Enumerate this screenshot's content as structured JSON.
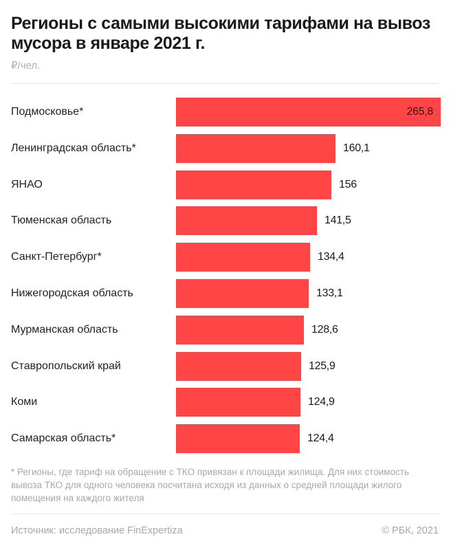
{
  "header": {
    "title": "Регионы с самыми высокими тарифами на вывоз мусора в январе 2021 г.",
    "unit": "₽/чел."
  },
  "footer": {
    "note": "* Регионы, где тариф на обращение с ТКО привязан к площади жилища. Для них стоимость вывоза ТКО для одного человека посчитана исходя из данных о средней площади жилого помещения на каждого жителя",
    "source": "Источник:  исследование FinExpertiza",
    "copyright": "© РБК, 2021"
  },
  "colors": {
    "bar": "#ff4545",
    "text": "#1a1a1a",
    "muted": "#a8a8a8",
    "divider": "#e6e6e6"
  },
  "chart_data": {
    "type": "bar",
    "orientation": "horizontal",
    "title": "Регионы с самыми высокими тарифами на вывоз мусора в январе 2021 г.",
    "xlabel": "",
    "ylabel": "",
    "unit": "₽/чел.",
    "grid": false,
    "legend": null,
    "categories": [
      "Подмосковье*",
      "Ленинградская область*",
      "ЯНАО",
      "Тюменская область",
      "Санкт-Петербург*",
      "Нижегородская область",
      "Мурманская область",
      "Ставропольский край",
      "Коми",
      "Самарская область*"
    ],
    "values": [
      265.8,
      160.1,
      156,
      141.5,
      134.4,
      133.1,
      128.6,
      125.9,
      124.9,
      124.4
    ],
    "value_labels": [
      "265,8",
      "160,1",
      "156",
      "141,5",
      "134,4",
      "133,1",
      "128,6",
      "125,9",
      "124,9",
      "124,4"
    ],
    "xlim": [
      0,
      265.8
    ]
  }
}
